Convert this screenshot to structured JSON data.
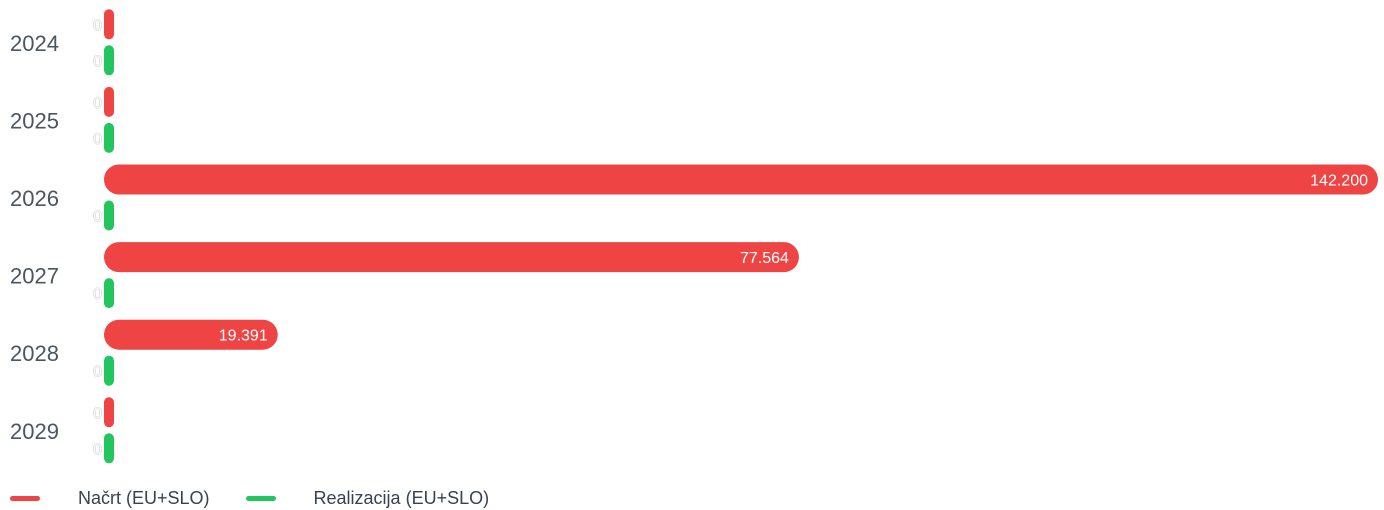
{
  "chart_data": {
    "type": "bar",
    "orientation": "horizontal",
    "categories": [
      "2024",
      "2025",
      "2026",
      "2027",
      "2028",
      "2029"
    ],
    "series": [
      {
        "name": "Načrt (EU+SLO)",
        "color": "#ef4444",
        "values": [
          0,
          0,
          142200,
          77564,
          19391,
          0
        ],
        "labels": [
          "0",
          "0",
          "142.200",
          "77.564",
          "19.391",
          "0"
        ]
      },
      {
        "name": "Realizacija (EU+SLO)",
        "color": "#22c55e",
        "values": [
          0,
          0,
          0,
          0,
          0,
          0
        ],
        "labels": [
          "0",
          "0",
          "0",
          "0",
          "0",
          "0"
        ]
      }
    ],
    "xlim": [
      0,
      142200
    ],
    "grid": false,
    "legend_position": "bottom-left"
  }
}
